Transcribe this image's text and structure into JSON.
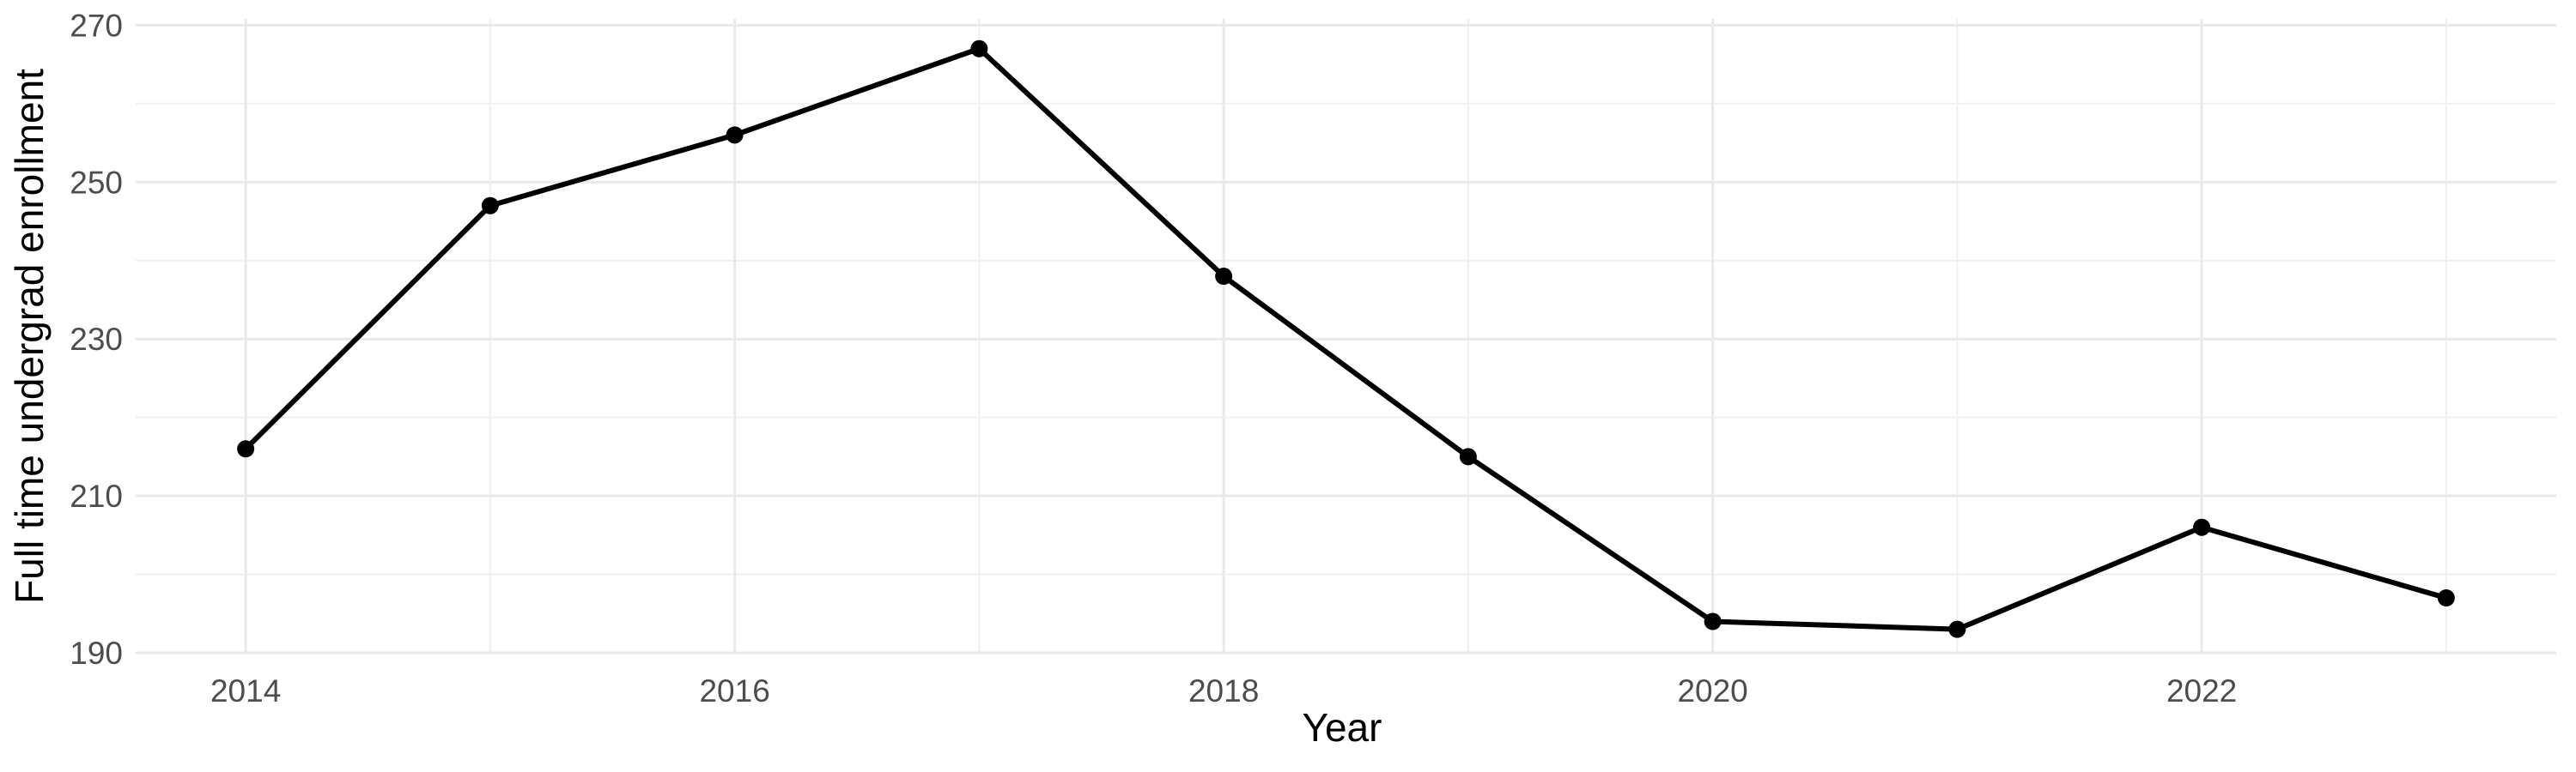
{
  "chart_data": {
    "type": "line",
    "title": "",
    "xlabel": "Year",
    "ylabel": "Full time undergrad enrollment",
    "x": [
      2014,
      2015,
      2016,
      2017,
      2018,
      2019,
      2020,
      2021,
      2022,
      2023
    ],
    "series": [
      {
        "name": "Full time undergrad enrollment",
        "values": [
          216,
          247,
          256,
          267,
          238,
          215,
          194,
          193,
          206,
          197
        ]
      }
    ],
    "x_tick_labels": [
      "2014",
      "2016",
      "2018",
      "2020",
      "2022"
    ],
    "x_tick_positions": [
      2014,
      2016,
      2018,
      2020,
      2022
    ],
    "x_minor_gridline_positions": [
      2015,
      2017,
      2019,
      2021,
      2023
    ],
    "y_tick_labels": [
      "190",
      "210",
      "230",
      "250",
      "270"
    ],
    "y_major_ticks": [
      190,
      210,
      230,
      250,
      270
    ],
    "y_minor_ticks": [
      200,
      220,
      240,
      260
    ],
    "xlim": [
      2013.55,
      2023.45
    ],
    "ylim": [
      189.9,
      270.8
    ],
    "grid": "on",
    "legend": "none",
    "colors": {
      "line": "#000000",
      "point": "#000000",
      "grid_major": "#e9e9e9",
      "grid_minor": "#f0f0f0",
      "tick_text": "#4d4d4d",
      "axis_title_text": "#000000",
      "background": "#ffffff"
    }
  }
}
